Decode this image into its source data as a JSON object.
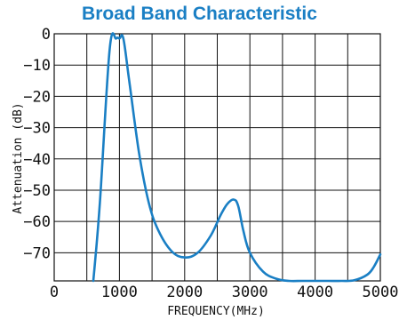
{
  "chart_data": {
    "type": "line",
    "title": "Broad Band Characteristic",
    "xlabel": "FREQUENCY(MHz)",
    "ylabel": "Attenuation (dB)",
    "xlim": [
      0,
      5000
    ],
    "ylim": [
      -79,
      0
    ],
    "x_ticks": [
      0,
      1000,
      2000,
      3000,
      4000,
      5000
    ],
    "x_tick_labels": [
      "0",
      "1000",
      "2000",
      "3000",
      "4000",
      "5000"
    ],
    "y_ticks": [
      0,
      -10,
      -20,
      -30,
      -40,
      -50,
      -60,
      -70
    ],
    "y_tick_labels": [
      "0",
      "−10",
      "−20",
      "−30",
      "−40",
      "−50",
      "−60",
      "−70"
    ],
    "grid": true,
    "colors": {
      "line": "#1a7fc4",
      "title": "#1a7fc4",
      "grid": "#111111"
    },
    "series": [
      {
        "x": [
          600,
          700,
          850,
          950,
          1000,
          1060,
          1150,
          1300,
          1450,
          1600,
          1800,
          2000,
          2200,
          2400,
          2550,
          2650,
          2750,
          2820,
          2900,
          3000,
          3200,
          3400,
          3600,
          3800,
          4000,
          4200,
          4400,
          4600,
          4800,
          4900,
          5000
        ],
        "y": [
          -79,
          -54,
          -5,
          -1.5,
          -1.5,
          -1.5,
          -15,
          -38,
          -54,
          -63,
          -69.5,
          -71.5,
          -70,
          -64.5,
          -58,
          -54.5,
          -53,
          -55,
          -63,
          -70,
          -76,
          -78.3,
          -79,
          -79,
          -79,
          -79,
          -79,
          -78.8,
          -77,
          -74.5,
          -70.5
        ]
      }
    ]
  }
}
